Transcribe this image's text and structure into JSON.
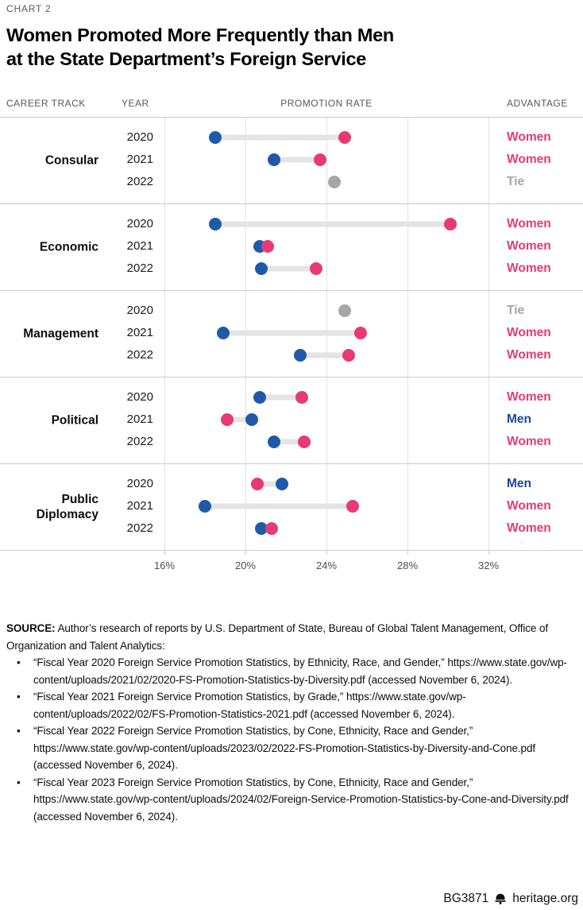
{
  "chart_label": "CHART 2",
  "title_line1": "Women Promoted More Frequently than Men",
  "title_line2": "at the State Department’s Foreign Service",
  "column_headers": {
    "career_track": "CAREER TRACK",
    "year": "YEAR",
    "promotion_rate": "PROMOTION RATE",
    "advantage": "ADVANTAGE"
  },
  "colors": {
    "women": "#e73a74",
    "men_dot": "#1e5aa9",
    "men_text": "#1a4aa2",
    "tie_dot": "#a6a6a6",
    "tie_text": "#a2a6a9",
    "connector": "#e4e4e4"
  },
  "chart_data": {
    "type": "scatter",
    "variant": "dumbbell",
    "title": "Women Promoted More Frequently than Men at the State Department’s Foreign Service",
    "xlabel": "PROMOTION RATE",
    "x_tick_labels": [
      "16%",
      "20%",
      "24%",
      "28%",
      "32%"
    ],
    "x_tick_values_pct": [
      16,
      20,
      24,
      28,
      32
    ],
    "xlim_pct": [
      13.8,
      33.3
    ],
    "grid": "vertical-only",
    "legend": {
      "men": "blue dot",
      "women": "pink dot",
      "tie": "gray dot"
    },
    "groups": [
      {
        "category": "Consular",
        "rows": [
          {
            "year": "2020",
            "men_pct": 18.5,
            "women_pct": 24.9,
            "advantage": "Women"
          },
          {
            "year": "2021",
            "men_pct": 21.4,
            "women_pct": 23.7,
            "advantage": "Women"
          },
          {
            "year": "2022",
            "men_pct": 24.4,
            "women_pct": 24.4,
            "advantage": "Tie"
          }
        ]
      },
      {
        "category": "Economic",
        "rows": [
          {
            "year": "2020",
            "men_pct": 18.5,
            "women_pct": 30.1,
            "advantage": "Women"
          },
          {
            "year": "2021",
            "men_pct": 20.7,
            "women_pct": 21.1,
            "advantage": "Women"
          },
          {
            "year": "2022",
            "men_pct": 20.8,
            "women_pct": 23.5,
            "advantage": "Women"
          }
        ]
      },
      {
        "category": "Management",
        "rows": [
          {
            "year": "2020",
            "men_pct": 24.9,
            "women_pct": 24.9,
            "advantage": "Tie"
          },
          {
            "year": "2021",
            "men_pct": 18.9,
            "women_pct": 25.7,
            "advantage": "Women"
          },
          {
            "year": "2022",
            "men_pct": 22.7,
            "women_pct": 25.1,
            "advantage": "Women"
          }
        ]
      },
      {
        "category": "Political",
        "rows": [
          {
            "year": "2020",
            "men_pct": 20.7,
            "women_pct": 22.8,
            "advantage": "Women"
          },
          {
            "year": "2021",
            "men_pct": 20.3,
            "women_pct": 19.1,
            "advantage": "Men"
          },
          {
            "year": "2022",
            "men_pct": 21.4,
            "women_pct": 22.9,
            "advantage": "Women"
          }
        ]
      },
      {
        "category": "Public Diplomacy",
        "rows": [
          {
            "year": "2020",
            "men_pct": 21.8,
            "women_pct": 20.6,
            "advantage": "Men"
          },
          {
            "year": "2021",
            "men_pct": 18.0,
            "women_pct": 25.3,
            "advantage": "Women"
          },
          {
            "year": "2022",
            "men_pct": 20.8,
            "women_pct": 21.3,
            "advantage": "Women"
          }
        ]
      }
    ]
  },
  "source": {
    "label": "SOURCE:",
    "intro": "Author’s research of reports by U.S. Department of State, Bureau of Global Talent Management, Office of Organization and Talent Analytics:",
    "bullets": [
      "“Fiscal Year 2020 Foreign Service Promotion Statistics, by Ethnicity, Race, and Gender,” https://www.state.gov/wp-content/uploads/2021/02/2020-FS-Promotion-Statistics-by-Diversity.pdf (accessed November 6, 2024).",
      "“Fiscal Year 2021 Foreign Service Promotion Statistics, by Grade,” https://www.state.gov/wp-content/uploads/2022/02/FS-Promotion-Statistics-2021.pdf (accessed November 6, 2024).",
      "“Fiscal Year 2022 Foreign Service Promotion Statistics, by Cone, Ethnicity, Race and Gender,” https://www.state.gov/wp-content/uploads/2023/02/2022-FS-Promotion-Statistics-by-Diversity-and-Cone.pdf (accessed November 6, 2024).",
      "“Fiscal Year 2023 Foreign Service Promotion Statistics, by Cone, Ethnicity, Race and Gender,” https://www.state.gov/wp-content/uploads/2024/02/Foreign-Service-Promotion-Statistics-by-Cone-and-Diversity.pdf (accessed November 6, 2024)."
    ]
  },
  "footer": {
    "id": "BG3871",
    "site": "heritage.org"
  }
}
